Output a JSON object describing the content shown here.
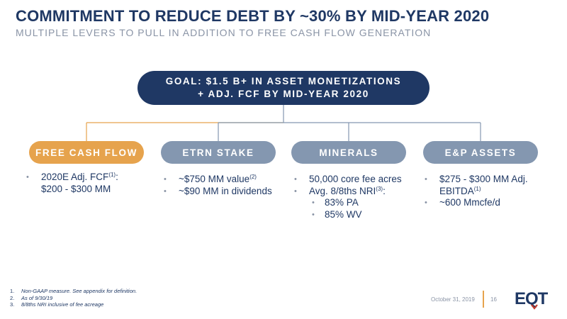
{
  "header": {
    "title": "COMMITMENT TO REDUCE DEBT BY ~30% BY MID-YEAR 2020",
    "subtitle": "MULTIPLE LEVERS TO PULL IN ADDITION TO FREE CASH FLOW GENERATION"
  },
  "goal": {
    "line1": "GOAL: $1.5 B+ IN ASSET MONETIZATIONS",
    "line2": "+ ADJ. FCF BY MID-YEAR 2020"
  },
  "levers": [
    {
      "label": "FREE CASH FLOW",
      "bullets": [
        {
          "text": "2020E Adj. FCF",
          "sup": "(1)",
          "after": ":"
        },
        {
          "text": "$200 - $300 MM",
          "continuation": true
        }
      ]
    },
    {
      "label": "ETRN STAKE",
      "bullets": [
        {
          "text": "~$750 MM value",
          "sup": "(2)"
        },
        {
          "text": "~$90 MM in dividends"
        }
      ]
    },
    {
      "label": "MINERALS",
      "bullets": [
        {
          "text": "50,000 core fee acres"
        },
        {
          "text": "Avg. 8/8ths NRI",
          "sup": "(3)",
          "after": ":"
        },
        {
          "text": "83% PA",
          "sub": true
        },
        {
          "text": "85% WV",
          "sub": true
        }
      ]
    },
    {
      "label": "E&P ASSETS",
      "bullets": [
        {
          "text": "$275 - $300 MM Adj.",
          "after": ""
        },
        {
          "text": "EBITDA",
          "sup": "(1)",
          "continuation": true
        },
        {
          "text": "~600 Mmcfe/d"
        }
      ]
    }
  ],
  "footnotes": [
    {
      "num": "1.",
      "text": "Non-GAAP measure. See appendix for definition."
    },
    {
      "num": "2.",
      "text": "As of 9/30/19"
    },
    {
      "num": "3.",
      "text": "8/8ths NRI inclusive of fee acreage"
    }
  ],
  "footer": {
    "date": "October 31, 2019",
    "page": "16",
    "logo": "EQT"
  },
  "colors": {
    "navy": "#1f3864",
    "orange": "#e6a34d",
    "steel": "#8497b0",
    "gray_text": "#8a94a6"
  }
}
